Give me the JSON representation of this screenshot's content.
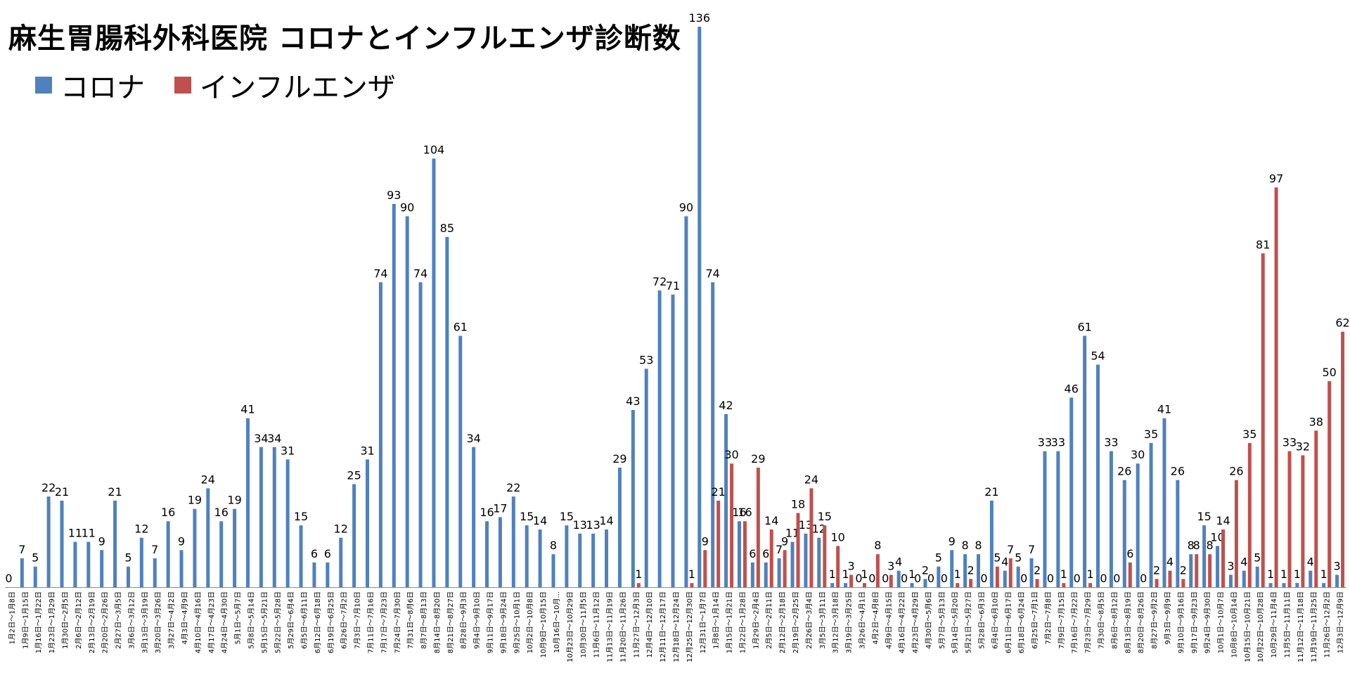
{
  "colors": {
    "corona": "#4f81bd",
    "influenza": "#c0504d",
    "axis": "#8c8c8c",
    "text": "#000000"
  },
  "chart_data": {
    "type": "bar",
    "title": "麻生胃腸科外科医院 コロナとインフルエンザ診断数",
    "legend_position": "top-left",
    "grid": false,
    "ylim": [
      0,
      136
    ],
    "categories": [
      "1月2日～1月8日",
      "1月9日～1月15日",
      "1月16日～1月22日",
      "1月23日～1月29日",
      "1月30日～2月5日",
      "2月6日～2月12日",
      "2月13日～2月19日",
      "2月20日～2月26日",
      "2月27日～3月5日",
      "3月6日～3月12日",
      "3月13日～3月19日",
      "3月20日～3月26日",
      "3月27日～4月2日",
      "4月3日～4月9日",
      "4月10日～4月16日",
      "4月17日～4月23日",
      "4月24日～4月30日",
      "5月1日～5月7日",
      "5月8日～5月14日",
      "5月15日～5月21日",
      "5月22日～5月28日",
      "5月29日～6月4日",
      "6月5日～6月11日",
      "6月12日～6月18日",
      "6月19日～6月25日",
      "6月26日～7月2日",
      "7月3日～7月10日",
      "7月11日～7月16日",
      "7月17日～7月23日",
      "7月24日～7月30日",
      "7月31日～8月6日",
      "8月7日～8月13日",
      "8月14日～8月20日",
      "8月21日～8月27日",
      "8月28日～9月3日",
      "9月4日～9月10日",
      "9月11日～9月17日",
      "9月18日～9月24日",
      "9月25日～10月1日",
      "10月2日～10月8日",
      "10月9日～10月15日",
      "10月16日～10月...",
      "10月23日～10月29日",
      "10月30日～11月5日",
      "11月6日～11月12日",
      "11月13日～11月19日",
      "11月20日～11月26日",
      "11月27日～12月3日",
      "12月4日～12月10日",
      "12月11日～12月17日",
      "12月18日～12月24日",
      "12月25日～12月30日",
      "12月31日～1月7日",
      "1月8日～1月14日",
      "1月15日～1月21日",
      "1月22日～1月28日",
      "1月29日～2月4日",
      "2月5日～2月11日",
      "2月12日～2月18日",
      "2月19日～2月25日",
      "2月26日～3月4日",
      "3月5日～3月11日",
      "3月12日～3月18日",
      "3月19日～3月25日",
      "3月26日～4月1日",
      "4月2日～4月8日",
      "4月9日～4月15日",
      "4月16日～4月22日",
      "4月23日～4月29日",
      "4月30日～5月6日",
      "5月7日～5月13日",
      "5月14日～5月20日",
      "5月21日～5月27日",
      "5月28日～6月3日",
      "6月4日～6月10日",
      "6月11日～6月17日",
      "6月18日～6月24日",
      "6月25日～7月1日",
      "7月2日～7月8日",
      "7月9日～7月15日",
      "7月16日～7月22日",
      "7月23日～7月29日",
      "7月30日～8月5日",
      "8月6日～8月12日",
      "8月13日～8月19日",
      "8月20日～8月26日",
      "8月27日～9月2日",
      "9月3日～9月9日",
      "9月10日～9月16日",
      "9月17日～9月23日",
      "9月24日～9月30日",
      "10月1日～10月7日",
      "10月8日～10月14日",
      "10月15日～10月21日",
      "10月22日～10月28日",
      "10月29日～11月4日",
      "11月5日～11月11日",
      "11月12日～11月18日",
      "11月19日～11月25日",
      "11月26日～12月2日",
      "12月3日～12月9日"
    ],
    "series": [
      {
        "name": "コロナ",
        "color": "#4f81bd",
        "values": [
          0,
          7,
          5,
          22,
          21,
          11,
          11,
          9,
          21,
          5,
          12,
          7,
          16,
          9,
          19,
          24,
          16,
          19,
          41,
          34,
          34,
          31,
          15,
          6,
          6,
          12,
          25,
          31,
          74,
          93,
          90,
          74,
          104,
          85,
          61,
          34,
          16,
          17,
          22,
          15,
          14,
          8,
          15,
          13,
          13,
          14,
          29,
          43,
          53,
          72,
          71,
          90,
          136,
          74,
          42,
          16,
          6,
          6,
          7,
          11,
          13,
          12,
          1,
          1,
          0,
          0,
          0,
          4,
          1,
          2,
          5,
          9,
          8,
          8,
          21,
          4,
          5,
          7,
          33,
          33,
          46,
          61,
          54,
          33,
          26,
          30,
          35,
          41,
          26,
          8,
          15,
          10,
          3,
          4,
          5,
          1,
          1,
          1,
          4,
          1,
          3
        ]
      },
      {
        "name": "インフルエンザ",
        "color": "#c0504d",
        "values": [
          null,
          null,
          null,
          null,
          null,
          null,
          null,
          null,
          null,
          null,
          null,
          null,
          null,
          null,
          null,
          null,
          null,
          null,
          null,
          null,
          null,
          null,
          null,
          null,
          null,
          null,
          null,
          null,
          null,
          null,
          null,
          null,
          null,
          null,
          null,
          null,
          null,
          null,
          null,
          null,
          null,
          null,
          null,
          null,
          null,
          null,
          null,
          1,
          null,
          null,
          null,
          1,
          9,
          21,
          30,
          16,
          29,
          14,
          9,
          18,
          24,
          15,
          10,
          3,
          1,
          8,
          3,
          0,
          0,
          0,
          0,
          1,
          2,
          0,
          5,
          7,
          0,
          2,
          0,
          1,
          0,
          1,
          0,
          0,
          6,
          0,
          2,
          4,
          2,
          8,
          8,
          14,
          26,
          35,
          81,
          97,
          33,
          32,
          38,
          50,
          62
        ]
      }
    ]
  }
}
